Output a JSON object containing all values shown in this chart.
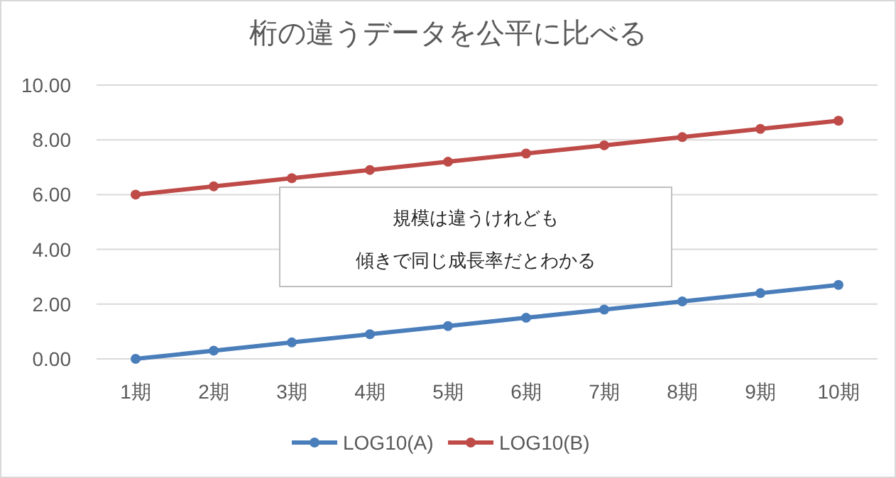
{
  "chart_data": {
    "type": "line",
    "title": "桁の違うデータを公平に比べる",
    "categories": [
      "1期",
      "2期",
      "3期",
      "4期",
      "5期",
      "6期",
      "7期",
      "8期",
      "9期",
      "10期"
    ],
    "series": [
      {
        "name": "LOG10(A)",
        "color": "#4a7ebb",
        "values": [
          0,
          0.3,
          0.6,
          0.9,
          1.2,
          1.5,
          1.8,
          2.1,
          2.4,
          2.7
        ]
      },
      {
        "name": "LOG10(B)",
        "color": "#be4b48",
        "values": [
          6.0,
          6.3,
          6.6,
          6.9,
          7.2,
          7.5,
          7.8,
          8.1,
          8.4,
          8.7
        ]
      }
    ],
    "ylim": [
      0,
      10
    ],
    "yticks": [
      {
        "value": 0,
        "label": "0.00"
      },
      {
        "value": 2,
        "label": "2.00"
      },
      {
        "value": 4,
        "label": "4.00"
      },
      {
        "value": 6,
        "label": "6.00"
      },
      {
        "value": 8,
        "label": "8.00"
      },
      {
        "value": 10,
        "label": "10.00"
      }
    ],
    "grid": "y",
    "legend": "bottom",
    "marker": "circle",
    "annotations": [
      "規模は違うけれども",
      "傾きで同じ成長率だとわかる"
    ]
  }
}
